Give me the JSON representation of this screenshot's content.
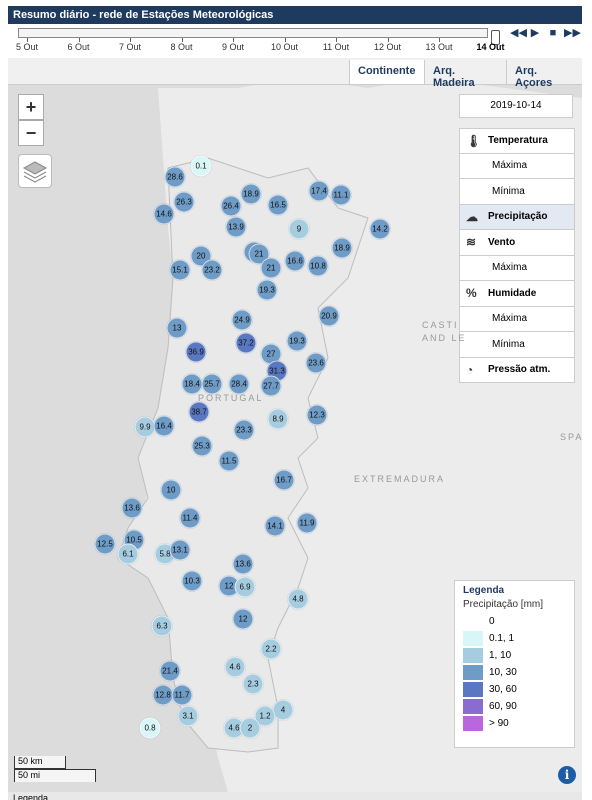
{
  "header": {
    "title": "Resumo diário - rede de Estações Meteorológicas"
  },
  "timeline": {
    "days": [
      "5 Out",
      "6 Out",
      "7 Out",
      "8 Out",
      "9 Out",
      "10 Out",
      "11 Out",
      "12 Out",
      "13 Out",
      "14 Out"
    ],
    "selected": "14 Out"
  },
  "tabs": [
    "Continente",
    "Arq. Madeira",
    "Arq. Açores"
  ],
  "zoom": {
    "in": "+",
    "out": "−"
  },
  "date": "2019-10-14",
  "panel": [
    {
      "label": "Temperatura",
      "type": "hdr",
      "icon": "thermometer-icon"
    },
    {
      "label": "Máxima",
      "type": "sub"
    },
    {
      "label": "Mínima",
      "type": "sub"
    },
    {
      "label": "Precipitação",
      "type": "hdr",
      "icon": "rain-cloud-icon",
      "selected": true
    },
    {
      "label": "Vento",
      "type": "hdr",
      "icon": "wind-icon"
    },
    {
      "label": "Máxima",
      "type": "sub"
    },
    {
      "label": "Humidade",
      "type": "hdr",
      "icon": "humidity-icon"
    },
    {
      "label": "Máxima",
      "type": "sub"
    },
    {
      "label": "Mínima",
      "type": "sub"
    },
    {
      "label": "Pressão atm.",
      "type": "hdr",
      "icon": "gauge-icon"
    }
  ],
  "places": [
    "CASTI",
    "AND LE",
    "PORTUGAL",
    "EXTREMADURA",
    "SPA"
  ],
  "legend": {
    "title": "Legenda",
    "subtitle": "Precipitação [mm]",
    "classes": [
      {
        "label": "0",
        "color": "#ffffff"
      },
      {
        "label": "0.1, 1",
        "color": "#d8f6f8"
      },
      {
        "label": "1, 10",
        "color": "#a6cce0"
      },
      {
        "label": "10, 30",
        "color": "#6f9cc6"
      },
      {
        "label": "30, 60",
        "color": "#5a78c2"
      },
      {
        "label": "60, 90",
        "color": "#8a6bd0"
      },
      {
        "label": "> 90",
        "color": "#bb66dd"
      }
    ]
  },
  "scale": {
    "km": "50 km",
    "mi": "50 mi"
  },
  "footer": "Legenda",
  "stations": [
    {
      "v": "0.1",
      "c": 1
    },
    {
      "v": "28.6",
      "c": 3
    },
    {
      "v": "26.3",
      "c": 3
    },
    {
      "v": "14.6",
      "c": 3
    },
    {
      "v": "26.4",
      "c": 3
    },
    {
      "v": "18.9",
      "c": 3
    },
    {
      "v": "16.5",
      "c": 3
    },
    {
      "v": "17.4",
      "c": 3
    },
    {
      "v": "11.1",
      "c": 3
    },
    {
      "v": "13.9",
      "c": 3
    },
    {
      "v": "9",
      "c": 2
    },
    {
      "v": "14.2",
      "c": 3
    },
    {
      "v": "21",
      "c": 3
    },
    {
      "v": "15.1",
      "c": 3
    },
    {
      "v": "20",
      "c": 3
    },
    {
      "v": "23.2",
      "c": 3
    },
    {
      "v": "21",
      "c": 3
    },
    {
      "v": "21",
      "c": 3
    },
    {
      "v": "16.6",
      "c": 3
    },
    {
      "v": "10.8",
      "c": 3
    },
    {
      "v": "18.9",
      "c": 3
    },
    {
      "v": "19.3",
      "c": 3
    },
    {
      "v": "13",
      "c": 3
    },
    {
      "v": "24.9",
      "c": 3
    },
    {
      "v": "20.9",
      "c": 3
    },
    {
      "v": "36.9",
      "c": 4
    },
    {
      "v": "37.2",
      "c": 4
    },
    {
      "v": "19.3",
      "c": 3
    },
    {
      "v": "27",
      "c": 3
    },
    {
      "v": "23.6",
      "c": 3
    },
    {
      "v": "31.3",
      "c": 4
    },
    {
      "v": "18.4",
      "c": 3
    },
    {
      "v": "25.7",
      "c": 3
    },
    {
      "v": "28.4",
      "c": 3
    },
    {
      "v": "27.7",
      "c": 3
    },
    {
      "v": "38.7",
      "c": 4
    },
    {
      "v": "8.9",
      "c": 2
    },
    {
      "v": "12.3",
      "c": 3
    },
    {
      "v": "9.9",
      "c": 2
    },
    {
      "v": "16.4",
      "c": 3
    },
    {
      "v": "23.3",
      "c": 3
    },
    {
      "v": "25.3",
      "c": 3
    },
    {
      "v": "11.5",
      "c": 3
    },
    {
      "v": "16.7",
      "c": 3
    },
    {
      "v": "10",
      "c": 3
    },
    {
      "v": "13.6",
      "c": 3
    },
    {
      "v": "11.4",
      "c": 3
    },
    {
      "v": "14.1",
      "c": 3
    },
    {
      "v": "11.9",
      "c": 3
    },
    {
      "v": "12.5",
      "c": 3
    },
    {
      "v": "10.5",
      "c": 3
    },
    {
      "v": "6.1",
      "c": 2
    },
    {
      "v": "5.8",
      "c": 2
    },
    {
      "v": "13.1",
      "c": 3
    },
    {
      "v": "13.6",
      "c": 3
    },
    {
      "v": "10.3",
      "c": 3
    },
    {
      "v": "12",
      "c": 3
    },
    {
      "v": "6.9",
      "c": 2
    },
    {
      "v": "4.8",
      "c": 2
    },
    {
      "v": "12",
      "c": 3
    },
    {
      "v": "6.3",
      "c": 2
    },
    {
      "v": "2.2",
      "c": 2
    },
    {
      "v": "21.4",
      "c": 3
    },
    {
      "v": "4.6",
      "c": 2
    },
    {
      "v": "2.3",
      "c": 2
    },
    {
      "v": "12.8",
      "c": 3
    },
    {
      "v": "11.7",
      "c": 3
    },
    {
      "v": "3.1",
      "c": 2
    },
    {
      "v": "4",
      "c": 2
    },
    {
      "v": "1.2",
      "c": 2
    },
    {
      "v": "0.8",
      "c": 1
    },
    {
      "v": "4.6",
      "c": 2
    },
    {
      "v": "2",
      "c": 2
    }
  ]
}
